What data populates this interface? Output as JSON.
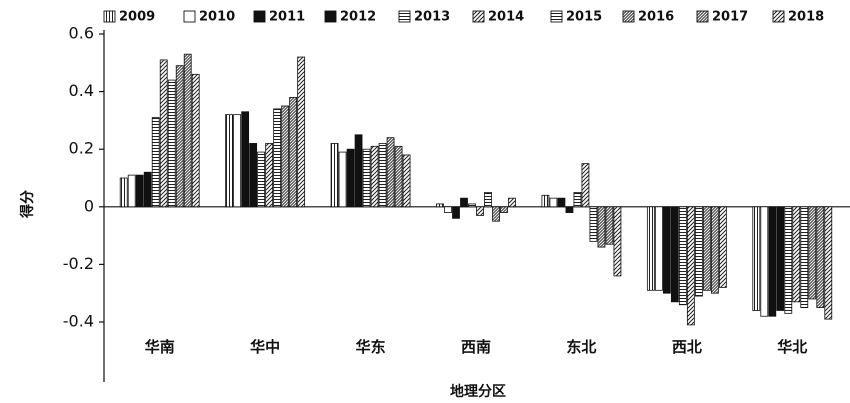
{
  "chart_data": {
    "type": "bar",
    "title": "",
    "xlabel": "地理分区",
    "ylabel": "得分",
    "ylim": [
      -0.4,
      0.6
    ],
    "yticks": [
      "0.6",
      "0.4",
      "0.2",
      "0",
      "-0.2",
      "-0.4"
    ],
    "grid": false,
    "legend_position": "top",
    "categories": [
      "华南",
      "华中",
      "华东",
      "西南",
      "东北",
      "西北",
      "华北"
    ],
    "series": [
      {
        "name": "2009",
        "pattern": "vlines",
        "values": [
          0.1,
          0.32,
          0.22,
          0.01,
          0.04,
          -0.29,
          -0.36
        ]
      },
      {
        "name": "2010",
        "pattern": "empty",
        "values": [
          0.11,
          0.32,
          0.19,
          -0.02,
          0.03,
          -0.29,
          -0.38
        ]
      },
      {
        "name": "2011",
        "pattern": "solid",
        "values": [
          0.11,
          0.33,
          0.2,
          -0.04,
          0.03,
          -0.3,
          -0.38
        ]
      },
      {
        "name": "2012",
        "pattern": "solid",
        "values": [
          0.12,
          0.22,
          0.25,
          0.03,
          -0.02,
          -0.33,
          -0.36
        ]
      },
      {
        "name": "2013",
        "pattern": "hlines",
        "values": [
          0.31,
          0.19,
          0.2,
          0.01,
          0.05,
          -0.34,
          -0.37
        ]
      },
      {
        "name": "2014",
        "pattern": "diag",
        "values": [
          0.51,
          0.22,
          0.21,
          -0.03,
          0.15,
          -0.41,
          -0.33
        ]
      },
      {
        "name": "2015",
        "pattern": "hlines",
        "values": [
          0.44,
          0.34,
          0.22,
          0.05,
          -0.12,
          -0.31,
          -0.35
        ]
      },
      {
        "name": "2016",
        "pattern": "dense-diag",
        "values": [
          0.49,
          0.35,
          0.24,
          -0.05,
          -0.14,
          -0.29,
          -0.32
        ]
      },
      {
        "name": "2017",
        "pattern": "dense-diag",
        "values": [
          0.53,
          0.38,
          0.21,
          -0.02,
          -0.13,
          -0.3,
          -0.35
        ]
      },
      {
        "name": "2018",
        "pattern": "diag",
        "values": [
          0.46,
          0.52,
          0.18,
          0.03,
          -0.24,
          -0.28,
          -0.39
        ]
      }
    ]
  }
}
